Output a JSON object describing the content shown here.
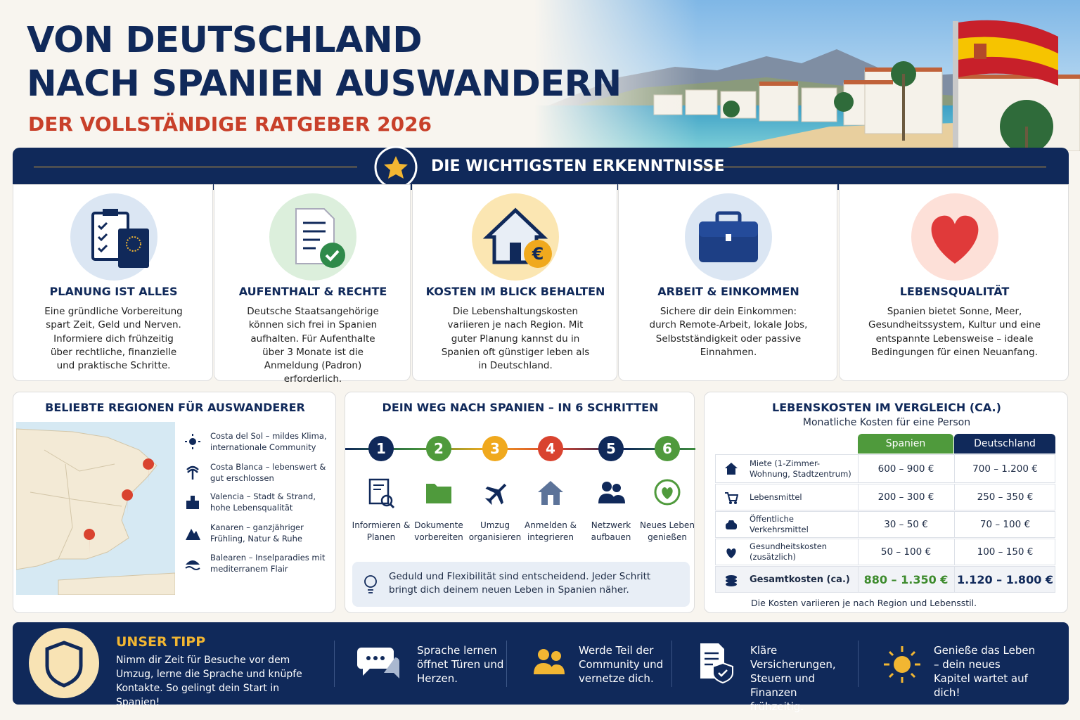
{
  "header": {
    "title": [
      "VON DEUTSCHLAND",
      "NACH SPANIEN AUSWANDERN"
    ],
    "subtitle": "DER VOLLSTÄNDIGE RATGEBER 2026"
  },
  "insights": {
    "title": "DIE WICHTIGSTEN ERKENNTNISSE",
    "cards": [
      {
        "title": "PLANUNG IST ALLES",
        "text": "Eine gründliche Vorbereitung spart Zeit, Geld und Nerven. Informiere dich frühzeitig über rechtliche, finanzielle und praktische Schritte."
      },
      {
        "title": "AUFENTHALT & RECHTE",
        "text": "Deutsche Staatsangehörige können sich frei in Spanien aufhalten. Für Aufenthalte über 3 Monate ist die Anmeldung (Padron) erforderlich."
      },
      {
        "title": "KOSTEN IM BLICK BEHALTEN",
        "text": "Die Lebenshaltungskosten variieren je nach Region. Mit guter Planung kannst du in Spanien oft günstiger leben als in Deutschland."
      },
      {
        "title": "ARBEIT & EINKOMMEN",
        "text": "Sichere dir dein Einkommen: durch Remote-Arbeit, lokale Jobs, Selbstständigkeit oder passive Einnahmen."
      },
      {
        "title": "LEBENSQUALITÄT",
        "text": "Spanien bietet Sonne, Meer, Gesundheitssystem, Kultur und eine entspannte Lebensweise – ideale Bedingungen für einen Neuanfang."
      }
    ]
  },
  "regions": {
    "title": "BELIEBTE REGIONEN FÜR AUSWANDERER",
    "items": [
      "Costa del Sol – mildes Klima, internationale Community",
      "Costa Blanca – lebenswert & gut erschlossen",
      "Valencia – Stadt & Strand, hohe Lebensqualität",
      "Kanaren – ganzjähriger Frühling, Natur & Ruhe",
      "Balearen – Inselparadies mit mediterranem Flair"
    ]
  },
  "steps": {
    "title": "DEIN WEG NACH SPANIEN  –  IN 6 SCHRITTEN",
    "items": [
      {
        "number": "1",
        "label": "Informieren & Planen"
      },
      {
        "number": "2",
        "label": "Dokumente vorbereiten"
      },
      {
        "number": "3",
        "label": "Umzug organisieren"
      },
      {
        "number": "4",
        "label": "Anmelden & integrieren"
      },
      {
        "number": "5",
        "label": "Netzwerk aufbauen"
      },
      {
        "number": "6",
        "label": "Neues Leben genießen"
      }
    ],
    "note": "Geduld und Flexibilität sind entscheidend. Jeder Schritt bringt dich deinem neuen Leben in Spanien näher."
  },
  "costs": {
    "title": "LEBENSKOSTEN IM VERGLEICH (CA.)",
    "subtitle": "Monatliche Kosten für eine Person",
    "columns": [
      "Spanien",
      "Deutschland"
    ],
    "rows": [
      [
        "Miete (1-Zimmer-Wohnung, Stadtzentrum)",
        "600 – 900 €",
        "700 – 1.200 €"
      ],
      [
        "Lebensmittel",
        "200 – 300 €",
        "250 – 350 €"
      ],
      [
        "Öffentliche Verkehrsmittel",
        "30 – 50 €",
        "70 – 100 €"
      ],
      [
        "Gesundheitskosten (zusätzlich)",
        "50 – 100 €",
        "100 – 150 €"
      ],
      [
        "Gesamtkosten (ca.)",
        "880 – 1.350 €",
        "1.120 – 1.800 €"
      ]
    ],
    "footnote": "Die Kosten variieren je nach Region und Lebensstil."
  },
  "tip": {
    "title": "UNSER TIPP",
    "text": "Nimm dir Zeit für Besuche vor dem Umzug, lerne die Sprache und knüpfe Kontakte. So gelingt dein Start in Spanien!",
    "items": [
      "Sprache lernen öffnet Türen und Herzen.",
      "Werde Teil der Community und vernetze dich.",
      "Kläre Versicherungen, Steuern und Finanzen frühzeitig.",
      "Genieße das Leben – dein neues Kapitel wartet auf dich!"
    ]
  }
}
